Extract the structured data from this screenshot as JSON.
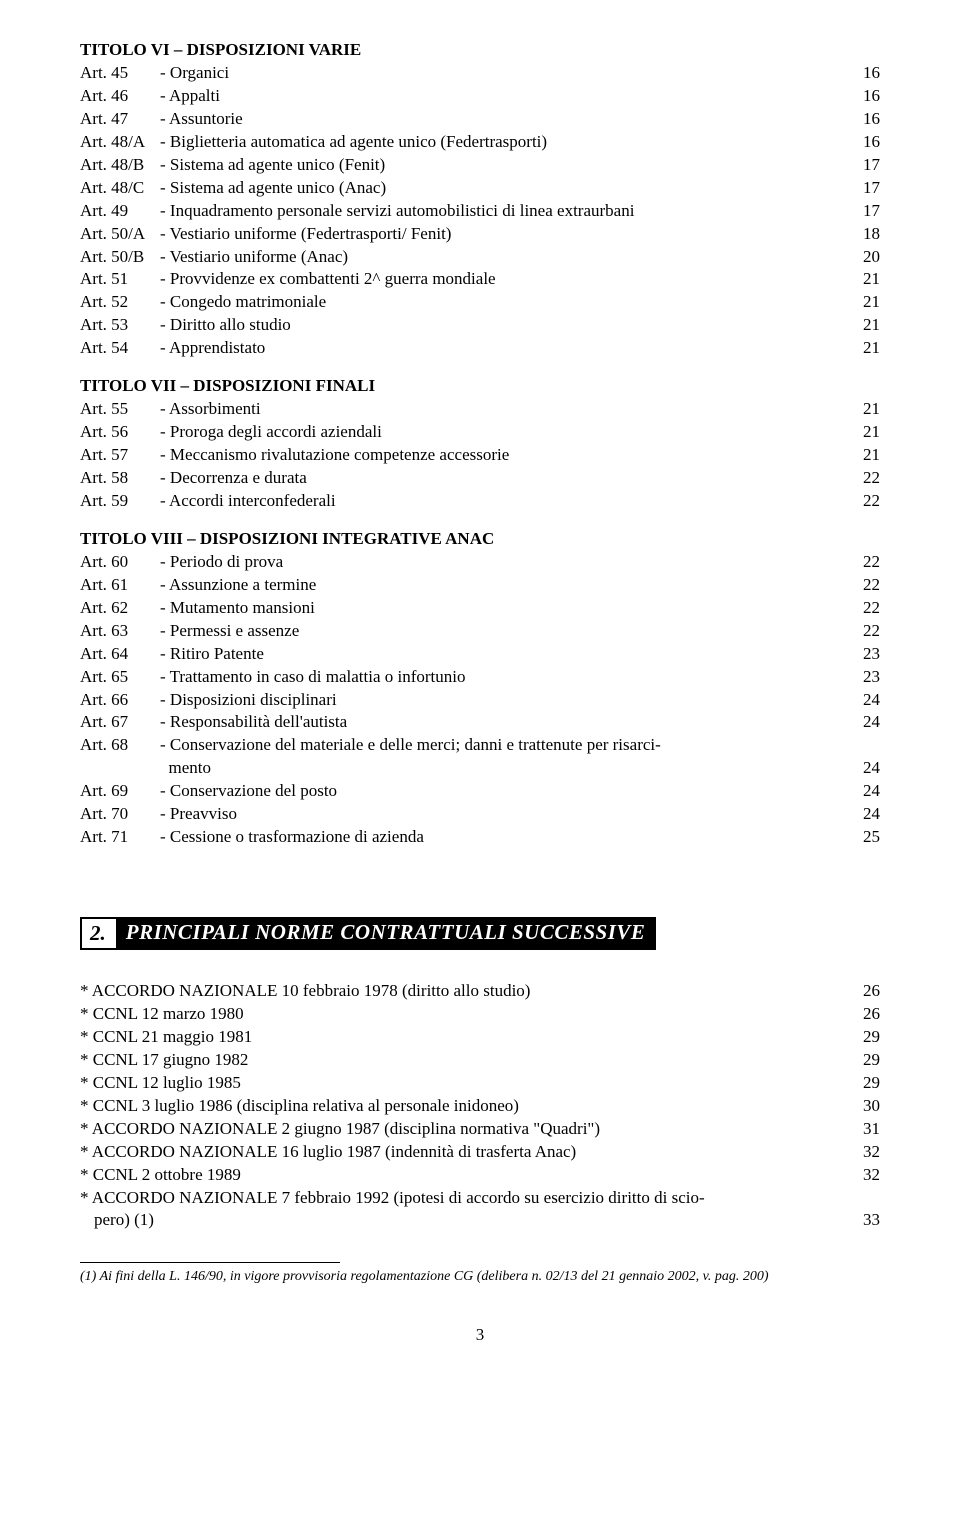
{
  "sections": [
    {
      "title": "TITOLO VI – DISPOSIZIONI VARIE",
      "items": [
        {
          "art": "Art. 45",
          "label": "- Organici",
          "page": "16"
        },
        {
          "art": "Art. 46",
          "label": "- Appalti",
          "page": "16"
        },
        {
          "art": "Art. 47",
          "label": "- Assuntorie",
          "page": "16"
        },
        {
          "art": "Art. 48/A",
          "label": "- Biglietteria automatica ad agente unico (Federtrasporti)",
          "page": "16"
        },
        {
          "art": "Art. 48/B",
          "label": "- Sistema ad agente unico (Fenit)",
          "page": "17"
        },
        {
          "art": "Art. 48/C",
          "label": "- Sistema ad agente unico (Anac)",
          "page": "17"
        },
        {
          "art": "Art. 49",
          "label": "- Inquadramento personale servizi automobilistici di linea extraurbani",
          "page": "17"
        },
        {
          "art": "Art. 50/A",
          "label": "- Vestiario uniforme (Federtrasporti/ Fenit)",
          "page": "18"
        },
        {
          "art": "Art. 50/B",
          "label": "- Vestiario uniforme (Anac)",
          "page": "20"
        },
        {
          "art": "Art. 51",
          "label": "- Provvidenze ex combattenti 2^ guerra mondiale",
          "page": "21"
        },
        {
          "art": "Art. 52",
          "label": "- Congedo matrimoniale",
          "page": "21"
        },
        {
          "art": "Art. 53",
          "label": "- Diritto allo studio",
          "page": "21"
        },
        {
          "art": "Art. 54",
          "label": "- Apprendistato",
          "page": "21"
        }
      ]
    },
    {
      "title": "TITOLO VII – DISPOSIZIONI FINALI",
      "items": [
        {
          "art": "Art. 55",
          "label": "- Assorbimenti",
          "page": "21"
        },
        {
          "art": "Art. 56",
          "label": "- Proroga degli accordi aziendali",
          "page": "21"
        },
        {
          "art": "Art. 57",
          "label": "- Meccanismo rivalutazione competenze accessorie",
          "page": "21"
        },
        {
          "art": "Art. 58",
          "label": "- Decorrenza e durata",
          "page": "22"
        },
        {
          "art": "Art. 59",
          "label": "- Accordi interconfederali",
          "page": "22"
        }
      ]
    },
    {
      "title": "TITOLO VIII – DISPOSIZIONI INTEGRATIVE ANAC",
      "items": [
        {
          "art": "Art. 60",
          "label": "- Periodo di prova",
          "page": "22"
        },
        {
          "art": "Art. 61",
          "label": "- Assunzione a termine",
          "page": "22"
        },
        {
          "art": "Art. 62",
          "label": "- Mutamento mansioni",
          "page": "22"
        },
        {
          "art": "Art. 63",
          "label": "- Permessi e assenze",
          "page": "22"
        },
        {
          "art": "Art. 64",
          "label": "- Ritiro Patente",
          "page": "23"
        },
        {
          "art": "Art. 65",
          "label": "- Trattamento in caso di malattia o infortunio",
          "page": "23"
        },
        {
          "art": "Art. 66",
          "label": "- Disposizioni disciplinari",
          "page": "24"
        },
        {
          "art": "Art. 67",
          "label": "- Responsabilità dell'autista",
          "page": "24"
        },
        {
          "art": "Art. 68",
          "label": "- Conservazione del materiale e delle merci; danni e trattenute per risarci-",
          "cont": "mento",
          "page": "24"
        },
        {
          "art": "Art. 69",
          "label": "- Conservazione del posto",
          "page": "24"
        },
        {
          "art": "Art. 70",
          "label": "- Preavviso",
          "page": "24"
        },
        {
          "art": "Art. 71",
          "label": "- Cessione o trasformazione di azienda",
          "page": "25"
        }
      ]
    }
  ],
  "heading": {
    "num": "2.",
    "text": "PRINCIPALI NORME CONTRATTUALI SUCCESSIVE"
  },
  "stars": [
    {
      "label": "* ACCORDO NAZIONALE 10 febbraio 1978 (diritto allo studio)",
      "page": "26"
    },
    {
      "label": "* CCNL 12 marzo 1980",
      "page": "26"
    },
    {
      "label": "* CCNL 21 maggio 1981",
      "page": "29"
    },
    {
      "label": "* CCNL 17 giugno 1982",
      "page": "29"
    },
    {
      "label": "* CCNL 12 luglio 1985",
      "page": "29"
    },
    {
      "label": "* CCNL 3 luglio 1986 (disciplina relativa al personale inidoneo)",
      "page": "30"
    },
    {
      "label": "* ACCORDO NAZIONALE 2 giugno 1987 (disciplina normativa \"Quadri\")",
      "page": "31"
    },
    {
      "label": "* ACCORDO NAZIONALE 16 luglio 1987 (indennità di trasferta Anac)",
      "page": "32"
    },
    {
      "label": "* CCNL 2 ottobre 1989",
      "page": "32"
    },
    {
      "label": "* ACCORDO NAZIONALE 7 febbraio 1992 (ipotesi di accordo su esercizio diritto di scio-",
      "cont": "pero) (1)",
      "page": "33"
    }
  ],
  "footnote": "(1) Ai fini della L. 146/90, in vigore provvisoria regolamentazione CG (delibera n. 02/13 del 21 gennaio 2002, v. pag. 200)",
  "page_number": "3"
}
